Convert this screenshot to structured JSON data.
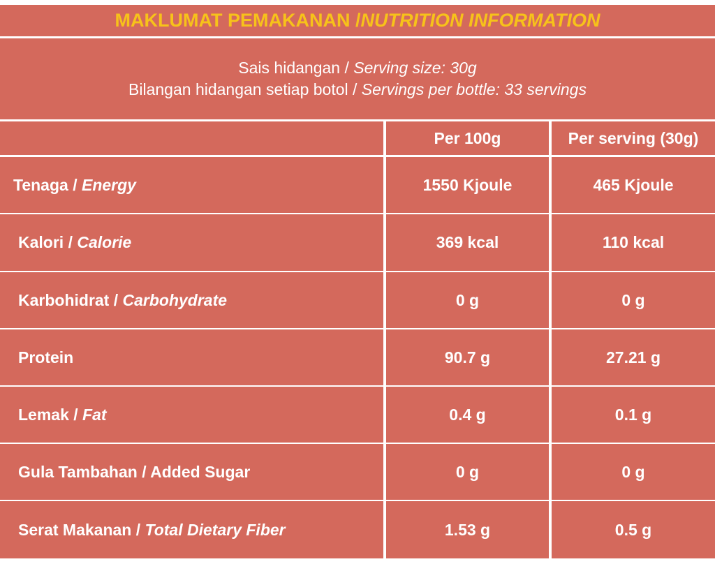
{
  "title": {
    "malay": "MAKLUMAT PEMAKANAN / ",
    "english": "NUTRITION INFORMATION"
  },
  "serving": {
    "size_malay": "Sais hidangan / ",
    "size_english": "Serving size: 30g",
    "count_malay": "Bilangan hidangan setiap botol / ",
    "count_english": "Servings per bottle: 33 servings"
  },
  "columns": [
    "",
    "Per 100g",
    "Per serving (30g)"
  ],
  "rows": [
    {
      "malay": "Tenaga / ",
      "english": "Energy",
      "per100": "1550 Kjoule",
      "perServing": "465 Kjoule"
    },
    {
      "malay": "Kalori / ",
      "english": "Calorie",
      "per100": "369 kcal",
      "perServing": "110 kcal"
    },
    {
      "malay": "Karbohidrat / ",
      "english": "Carbohydrate",
      "per100": "0 g",
      "perServing": "0 g"
    },
    {
      "malay": "Protein",
      "english": "",
      "per100": "90.7 g",
      "perServing": "27.21 g"
    },
    {
      "malay": "Lemak / ",
      "english": "Fat",
      "per100": "0.4 g",
      "perServing": "0.1 g"
    },
    {
      "malay": "Gula Tambahan / Added Sugar",
      "english": "",
      "per100": "0 g",
      "perServing": "0 g"
    },
    {
      "malay": "Serat Makanan / ",
      "english": "Total Dietary Fiber",
      "per100": "1.53 g",
      "perServing": "0.5 g"
    }
  ],
  "colors": {
    "background": "#d4695c",
    "title": "#f7c21a",
    "text": "#ffffff"
  }
}
